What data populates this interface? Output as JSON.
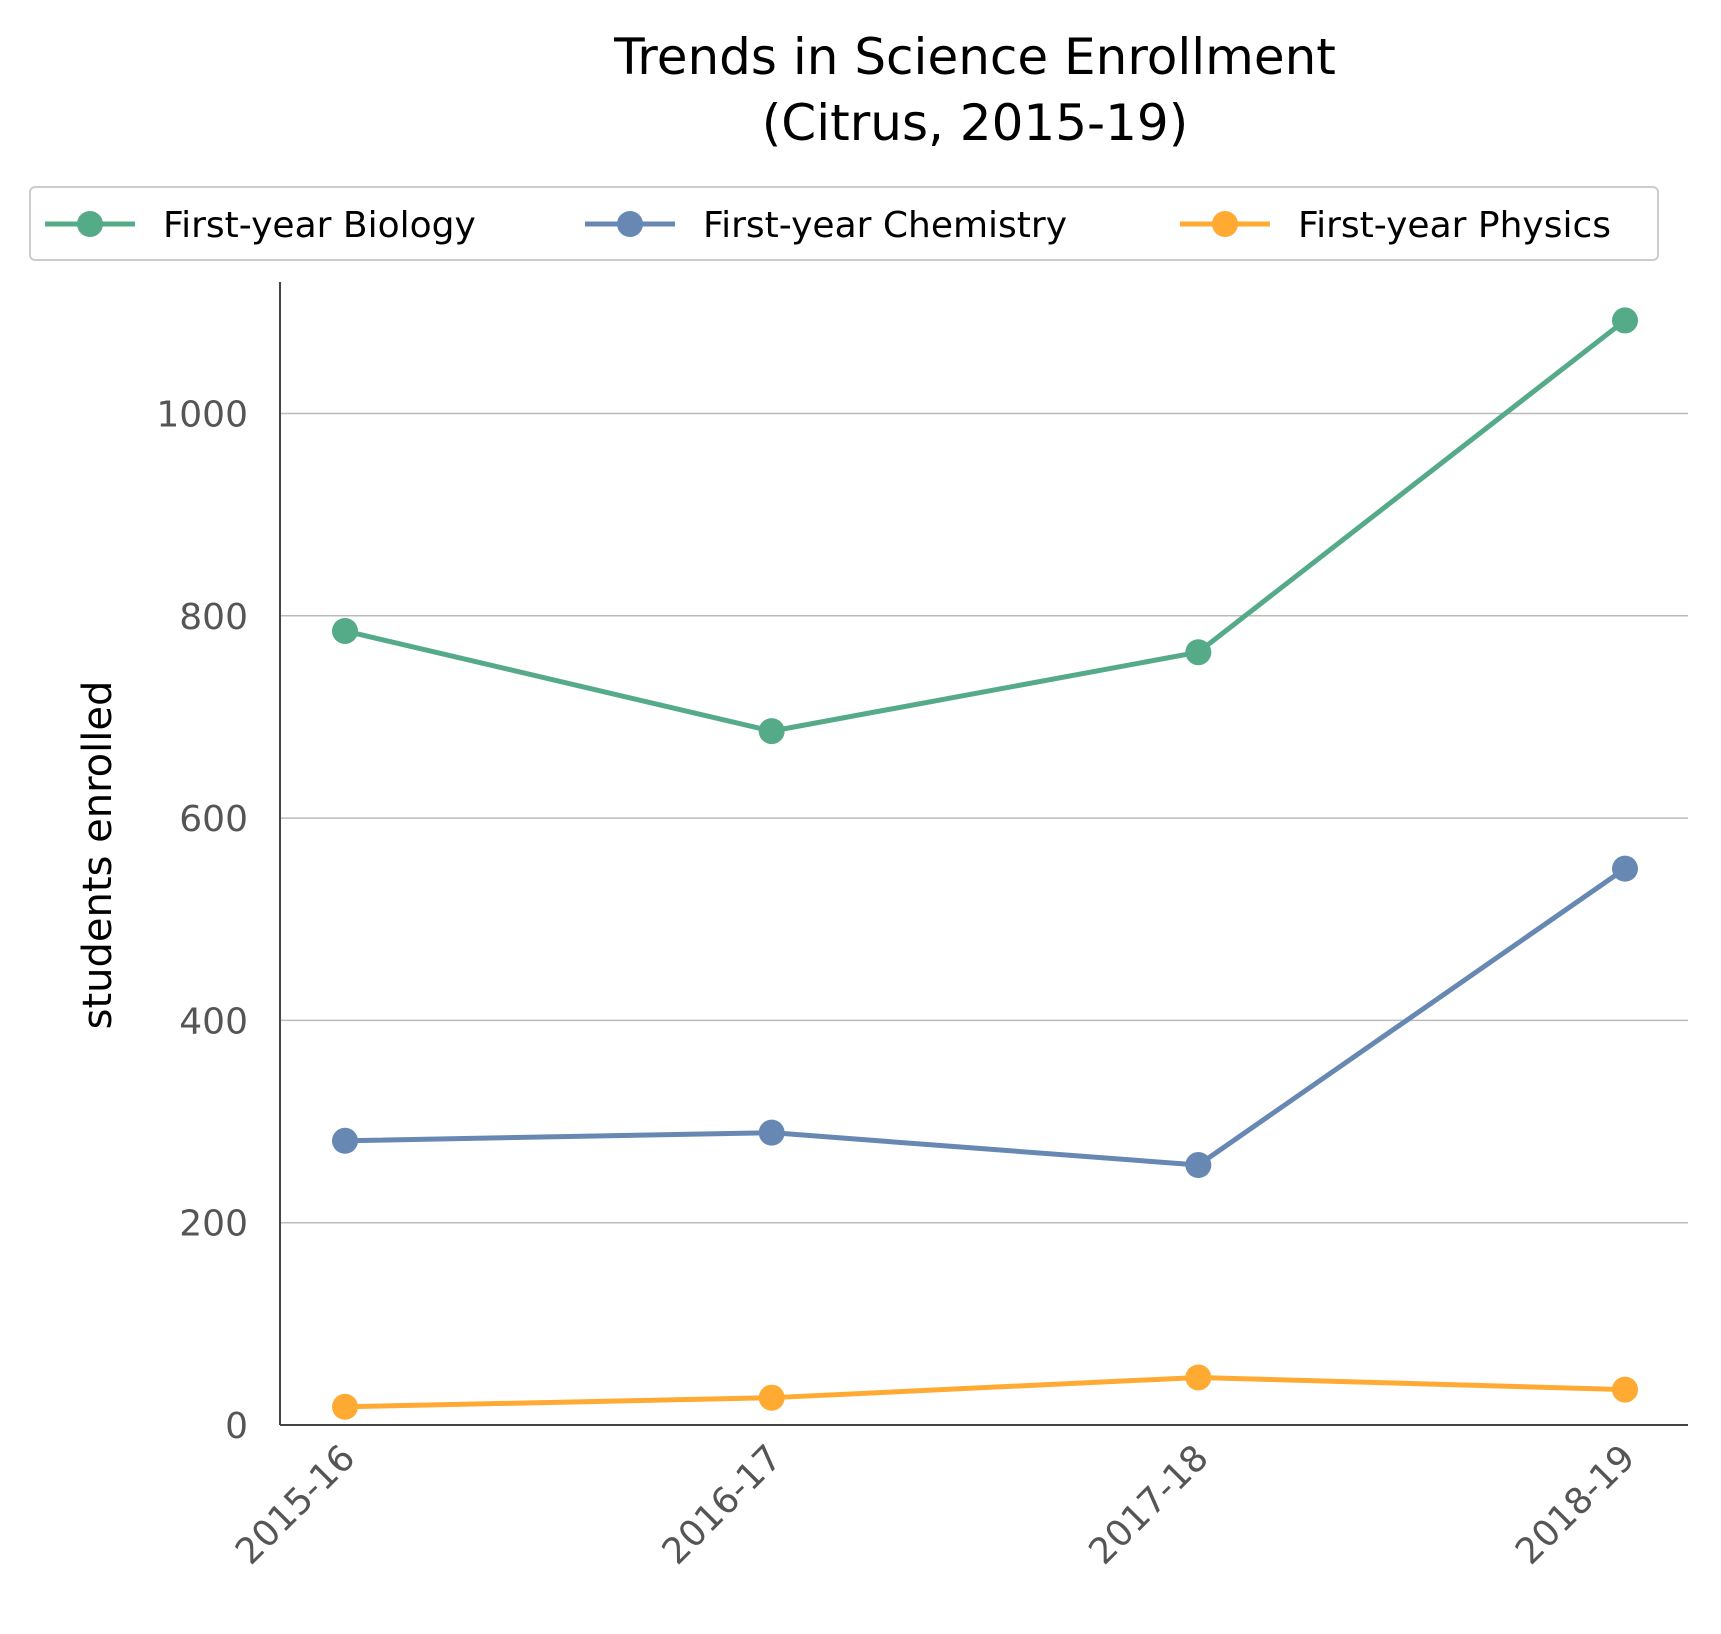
{
  "chart_data": {
    "type": "line",
    "title_lines": [
      "Trends in Science Enrollment",
      "(Citrus, 2015-19)"
    ],
    "xlabel": "",
    "ylabel": "students enrolled",
    "categories": [
      "2015-16",
      "2016-17",
      "2017-18",
      "2018-19"
    ],
    "ylim": [
      0,
      1130
    ],
    "yticks": [
      0,
      200,
      400,
      600,
      800,
      1000
    ],
    "grid": "horizontal",
    "legend_position": "top",
    "series": [
      {
        "name": "First-year Biology",
        "color": "#55aa88",
        "values": [
          785,
          686,
          764,
          1092
        ]
      },
      {
        "name": "First-year Chemistry",
        "color": "#6688b3",
        "values": [
          281,
          289,
          257,
          550
        ]
      },
      {
        "name": "First-year Physics",
        "color": "#ffaa33",
        "values": [
          18,
          27,
          47,
          35
        ]
      }
    ]
  }
}
